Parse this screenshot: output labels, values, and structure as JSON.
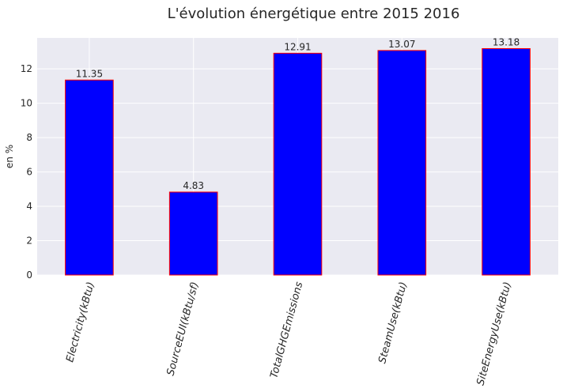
{
  "chart_data": {
    "type": "bar",
    "title": "L'évolution énergétique entre 2015 2016",
    "xlabel": "",
    "ylabel": "en %",
    "categories": [
      "Electricity(kBtu)",
      "SourceEUI(kBtu/sf)",
      "TotalGHGEmissions",
      "SteamUse(kBtu)",
      "SiteEnergyUse(kBtu)"
    ],
    "values": [
      11.35,
      4.83,
      12.91,
      13.07,
      13.18
    ],
    "data_labels": [
      "11.35",
      "4.83",
      "12.91",
      "13.07",
      "13.18"
    ],
    "ylim": [
      0,
      13.8
    ],
    "yticks": [
      0,
      2,
      4,
      6,
      8,
      10,
      12
    ],
    "ytick_labels": [
      "0",
      "2",
      "4",
      "6",
      "8",
      "10",
      "12"
    ],
    "grid": true,
    "legend": "none",
    "colors": {
      "bar_fill": "#0000ff",
      "bar_edge": "#ff0000",
      "plot_background": "#eaeaf2",
      "grid": "#ffffff",
      "text": "#262626"
    }
  }
}
